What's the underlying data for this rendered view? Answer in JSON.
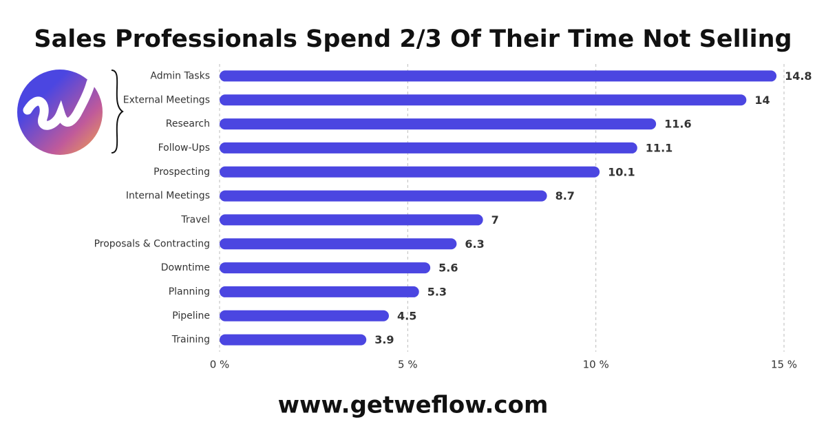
{
  "chart_data": {
    "type": "bar",
    "orientation": "horizontal",
    "title": "Sales Professionals Spend 2/3 Of Their Time Not Selling",
    "footer": "www.getweflow.com",
    "categories": [
      "Admin Tasks",
      "External Meetings",
      "Research",
      "Follow-Ups",
      "Prospecting",
      "Internal Meetings",
      "Travel",
      "Proposals & Contracting",
      "Downtime",
      "Planning",
      "Pipeline",
      "Training"
    ],
    "values": [
      14.8,
      14,
      11.6,
      11.1,
      10.1,
      8.7,
      7,
      6.3,
      5.6,
      5.3,
      4.5,
      3.9
    ],
    "color": "#4b46e1",
    "xlim": [
      0,
      15
    ],
    "xticks": [
      {
        "value": 0,
        "label": "0 %"
      },
      {
        "value": 5,
        "label": "5 %"
      },
      {
        "value": 10,
        "label": "10 %"
      },
      {
        "value": 15,
        "label": "15 %"
      }
    ],
    "grid": true
  }
}
